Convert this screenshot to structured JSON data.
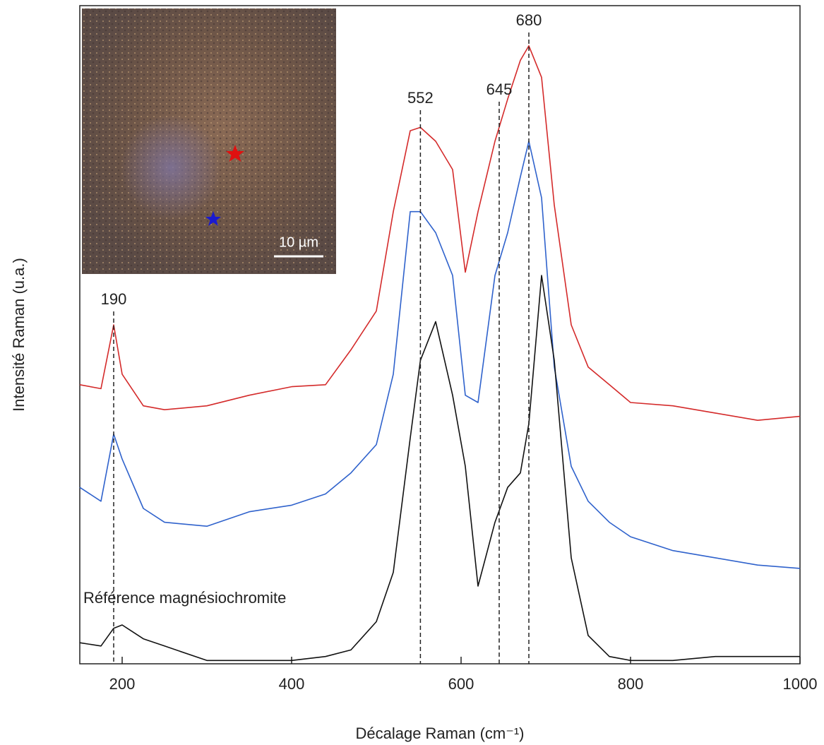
{
  "chart_data": {
    "type": "line",
    "x_label": "Décalage Raman (cm⁻¹)",
    "y_label": "Intensité Raman (u.a.)",
    "x": [
      150,
      175,
      190,
      200,
      225,
      250,
      300,
      350,
      400,
      440,
      470,
      500,
      520,
      540,
      552,
      570,
      590,
      605,
      620,
      640,
      655,
      670,
      680,
      695,
      710,
      730,
      750,
      775,
      800,
      850,
      900,
      950,
      1000
    ],
    "series": [
      {
        "color": "#d42a2a",
        "values": [
          42.4,
          41.8,
          51.5,
          44.0,
          39.2,
          38.6,
          39.2,
          40.8,
          42.1,
          42.4,
          47.7,
          53.6,
          68.7,
          81.0,
          81.5,
          79.4,
          75.1,
          59.5,
          68.7,
          79.4,
          85.8,
          91.7,
          93.9,
          89.1,
          69.7,
          51.5,
          45.1,
          42.4,
          39.7,
          39.2,
          38.1,
          37.0,
          37.6
        ]
      },
      {
        "color": "#2f62cc",
        "values": [
          26.8,
          24.7,
          34.9,
          31.1,
          23.6,
          21.5,
          20.9,
          23.1,
          24.1,
          25.8,
          29.0,
          33.3,
          44.0,
          68.7,
          68.7,
          65.5,
          59.0,
          40.8,
          39.7,
          59.0,
          65.5,
          74.0,
          79.4,
          70.8,
          45.1,
          30.0,
          24.7,
          21.5,
          19.3,
          17.2,
          16.1,
          15.0,
          14.5
        ]
      },
      {
        "color": "#111111",
        "values": [
          3.2,
          2.7,
          5.4,
          5.9,
          3.8,
          2.7,
          0.5,
          0.5,
          0.5,
          1.1,
          2.1,
          6.4,
          13.9,
          34.3,
          46.1,
          52.0,
          40.8,
          30.0,
          11.8,
          21.5,
          26.8,
          29.0,
          36.5,
          59.0,
          46.1,
          16.1,
          4.3,
          1.1,
          0.5,
          0.5,
          1.1,
          1.1,
          1.1
        ]
      }
    ],
    "peaks": [
      190,
      552,
      645,
      680
    ],
    "annotation": "Référence magnésiochromite",
    "scale_bar": "10 µm",
    "xlim": [
      150,
      1000
    ],
    "xticks": [
      200,
      400,
      600,
      800,
      1000
    ],
    "ylim": [
      0,
      100
    ]
  }
}
